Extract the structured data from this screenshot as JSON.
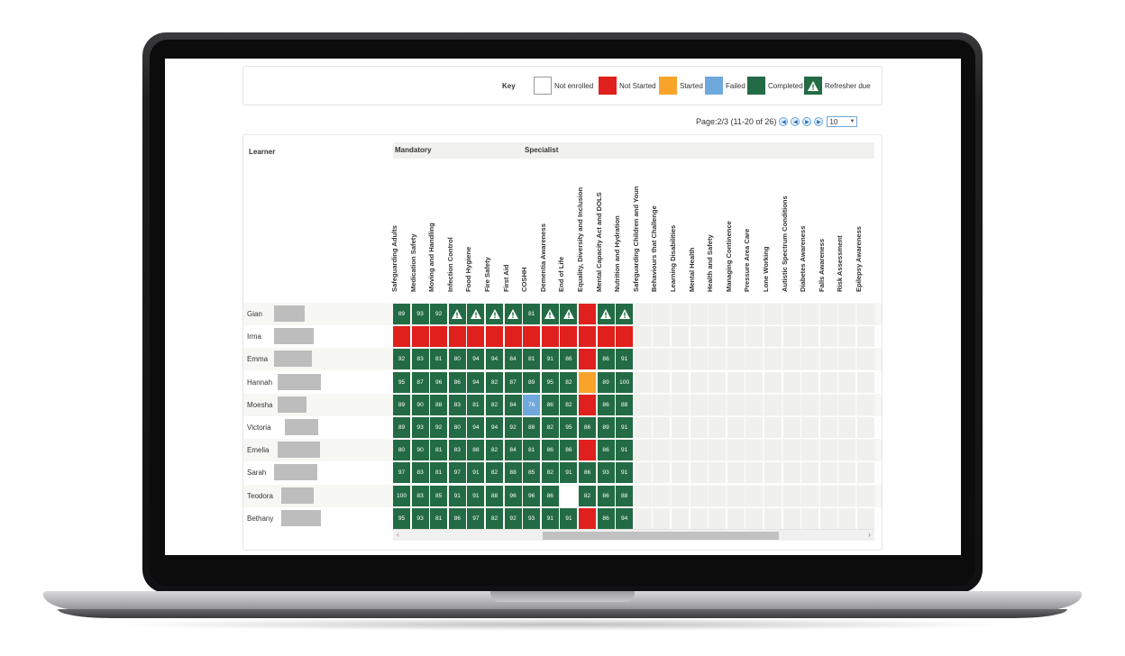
{
  "key": {
    "title": "Key",
    "items": [
      {
        "label": "Not enrolled",
        "status": "not-enrolled",
        "color": "#ffffff"
      },
      {
        "label": "Not Started",
        "status": "not-started",
        "color": "#e0201c"
      },
      {
        "label": "Started",
        "status": "started",
        "color": "#f8a42a"
      },
      {
        "label": "Failed",
        "status": "failed",
        "color": "#6fa8dc"
      },
      {
        "label": "Completed",
        "status": "completed",
        "color": "#236b45"
      },
      {
        "label": "Refresher due",
        "status": "refresher-due",
        "color": "#236b45"
      }
    ]
  },
  "pager": {
    "text": "Page:2/3 (11-20 of 26)",
    "page_size": "10",
    "buttons": [
      "first-page",
      "previous-page",
      "next-page",
      "last-page"
    ]
  },
  "grid": {
    "learner_header": "Learner",
    "groups": [
      {
        "label": "Mandatory"
      },
      {
        "label": "Specialist"
      }
    ],
    "courses": [
      "Safeguarding Adults",
      "Medication Safety",
      "Moving and Handling",
      "Infection Control",
      "Food Hygiene",
      "Fire Safety",
      "First Aid",
      "COSHH",
      "Dementia Awareness",
      "End of Life",
      "Equality, Diversity and Inclusion",
      "Mental Capacity Act and DOLS",
      "Nutrition and Hydration",
      "Safeguarding Children and Youn",
      "Behaviours that Challenge",
      "Learning Disabilities",
      "Mental Health",
      "Health and Safety",
      "Managing Continence",
      "Pressure Area Care",
      "Lone Working",
      "Autistic Spectrum Conditions",
      "Diabetes Awareness",
      "Falls Awareness",
      "Risk Assessment",
      "Epilepsy Awareness"
    ],
    "learners": [
      {
        "name": "Gian",
        "cells": [
          "89",
          "93",
          "92",
          "!",
          "!",
          "!",
          "!",
          "81",
          "!",
          "!",
          "R",
          "!",
          "!"
        ]
      },
      {
        "name": "Irma",
        "cells": [
          "R",
          "R",
          "R",
          "R",
          "R",
          "R",
          "R",
          "R",
          "R",
          "R",
          "R",
          "R",
          "R"
        ]
      },
      {
        "name": "Emma",
        "cells": [
          "92",
          "83",
          "81",
          "80",
          "94",
          "94",
          "84",
          "81",
          "91",
          "86",
          "R",
          "86",
          "91"
        ]
      },
      {
        "name": "Hannah",
        "cells": [
          "95",
          "87",
          "96",
          "86",
          "94",
          "82",
          "87",
          "89",
          "95",
          "82",
          "S",
          "89",
          "100"
        ]
      },
      {
        "name": "Moesha",
        "cells": [
          "89",
          "90",
          "88",
          "83",
          "81",
          "82",
          "84",
          "F76",
          "86",
          "82",
          "R",
          "86",
          "88"
        ]
      },
      {
        "name": "Victoria",
        "cells": [
          "89",
          "93",
          "92",
          "80",
          "94",
          "94",
          "92",
          "88",
          "82",
          "95",
          "86",
          "89",
          "91"
        ]
      },
      {
        "name": "Emelia",
        "cells": [
          "80",
          "90",
          "81",
          "83",
          "88",
          "82",
          "84",
          "81",
          "86",
          "86",
          "R",
          "86",
          "91"
        ]
      },
      {
        "name": "Sarah",
        "cells": [
          "97",
          "83",
          "81",
          "97",
          "91",
          "82",
          "88",
          "85",
          "82",
          "91",
          "86",
          "93",
          "91"
        ]
      },
      {
        "name": "Teodora",
        "cells": [
          "100",
          "83",
          "85",
          "91",
          "91",
          "88",
          "96",
          "96",
          "86",
          "W",
          "82",
          "86",
          "88"
        ]
      },
      {
        "name": "Bethany",
        "cells": [
          "95",
          "93",
          "81",
          "86",
          "97",
          "82",
          "92",
          "93",
          "91",
          "91",
          "R",
          "86",
          "94"
        ]
      }
    ]
  }
}
